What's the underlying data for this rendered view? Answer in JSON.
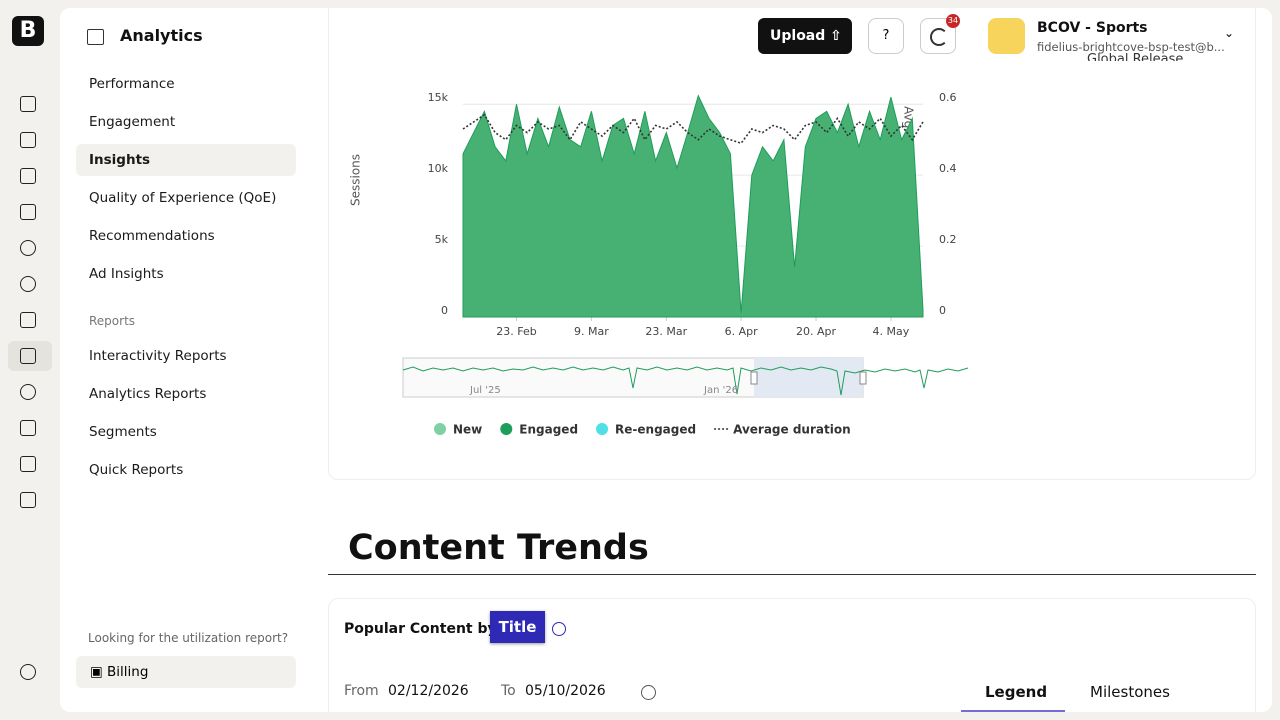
{
  "header": {
    "title": "Analytics",
    "upload": "Upload",
    "badge": "34",
    "account": "BCOV - Sports",
    "email": "fidelius-brightcove-bsp-test@b..."
  },
  "nav": {
    "items": [
      "Performance",
      "Engagement",
      "Insights",
      "Quality of Experience (QoE)",
      "Recommendations",
      "Ad Insights"
    ],
    "section": "Reports",
    "reports": [
      "Interactivity Reports",
      "Analytics Reports",
      "Segments",
      "Quick Reports"
    ],
    "footer_note": "Looking for the utilization report?",
    "billing": "Billing"
  },
  "card_top_label": "Global Release",
  "chart_data": {
    "type": "area",
    "ylabel": "Sessions",
    "y2label": "Avg. Duration (minutes)",
    "x": [
      "13. Feb",
      "15. Feb",
      "17. Feb",
      "19. Feb",
      "21. Feb",
      "23. Feb",
      "25. Feb",
      "27. Feb",
      "1. Mar",
      "3. Mar",
      "5. Mar",
      "7. Mar",
      "9. Mar",
      "11. Mar",
      "13. Mar",
      "15. Mar",
      "17. Mar",
      "19. Mar",
      "21. Mar",
      "23. Mar",
      "25. Mar",
      "27. Mar",
      "29. Mar",
      "31. Mar",
      "2. Apr",
      "4. Apr",
      "6. Apr",
      "8. Apr",
      "10. Apr",
      "12. Apr",
      "14. Apr",
      "16. Apr",
      "18. Apr",
      "20. Apr",
      "22. Apr",
      "24. Apr",
      "26. Apr",
      "28. Apr",
      "30. Apr",
      "2. May",
      "4. May",
      "6. May",
      "8. May",
      "10. May"
    ],
    "xticks": [
      "23. Feb",
      "9. Mar",
      "23. Mar",
      "6. Apr",
      "20. Apr",
      "4. May"
    ],
    "ylim": [
      0,
      16000
    ],
    "yticks": [
      0,
      {
        "value": 5000,
        "label": "5k"
      },
      {
        "value": 10000,
        "label": "10k"
      },
      {
        "value": 15000,
        "label": "15k"
      }
    ],
    "y2lim": [
      0,
      0.64
    ],
    "y2ticks": [
      0,
      0.2,
      0.4,
      0.6
    ],
    "grid": true,
    "series": [
      {
        "name": "New",
        "color": "#7fd1a4",
        "hidden": true
      },
      {
        "name": "Engaged",
        "color": "#1f9d5b",
        "fill": "#46b173",
        "values": [
          11500,
          13000,
          14500,
          12000,
          11000,
          15000,
          11500,
          14000,
          12000,
          14800,
          12500,
          12000,
          14500,
          11000,
          13500,
          14000,
          11500,
          14500,
          11000,
          13000,
          10500,
          13000,
          15600,
          14000,
          13000,
          11500,
          300,
          10000,
          12000,
          11000,
          12500,
          3500,
          12000,
          14000,
          14500,
          13000,
          15000,
          12000,
          14500,
          12500,
          15500,
          12500,
          14000,
          500
        ]
      },
      {
        "name": "Re-engaged",
        "color": "#4fe0e6",
        "hidden": true
      },
      {
        "name": "Average duration",
        "color": "#333333",
        "axis": "y2",
        "dash": true,
        "values": [
          0.53,
          0.55,
          0.57,
          0.52,
          0.5,
          0.54,
          0.52,
          0.55,
          0.53,
          0.54,
          0.5,
          0.55,
          0.53,
          0.51,
          0.54,
          0.52,
          0.56,
          0.5,
          0.54,
          0.53,
          0.55,
          0.52,
          0.5,
          0.53,
          0.51,
          0.5,
          0.49,
          0.53,
          0.52,
          0.54,
          0.53,
          0.5,
          0.54,
          0.55,
          0.52,
          0.56,
          0.51,
          0.55,
          0.53,
          0.56,
          0.51,
          0.54,
          0.5,
          0.55
        ]
      }
    ],
    "navigator_labels": [
      "Jul '25",
      "Jan '26"
    ]
  },
  "content": {
    "heading": "Content Trends",
    "popular_by": "Popular Content by",
    "title_button": "Title",
    "from_label": "From",
    "from_value": "02/12/2026",
    "to_label": "To",
    "to_value": "05/10/2026",
    "tabs": [
      "Legend",
      "Milestones"
    ]
  }
}
